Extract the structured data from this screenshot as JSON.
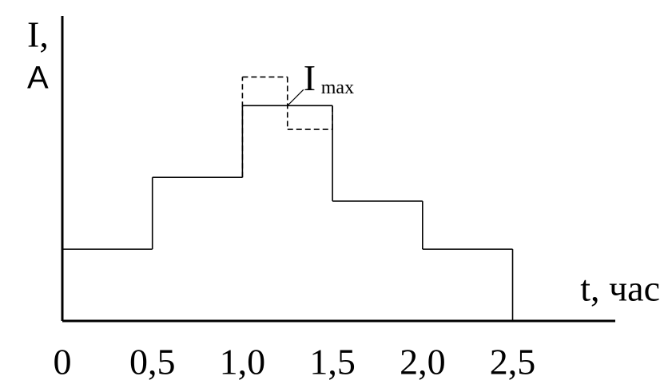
{
  "chart_data": {
    "type": "step",
    "xlabel": "t, час",
    "ylabel": [
      "I,",
      "A"
    ],
    "xlim": [
      0,
      3.07
    ],
    "ylim": [
      0,
      4.25
    ],
    "xticks": [
      0,
      {
        "value": 0.5,
        "label": "0,5"
      },
      {
        "value": 1,
        "label": "1,0"
      },
      {
        "value": 1.5,
        "label": "1,5"
      },
      {
        "value": 2,
        "label": "2,0"
      },
      {
        "value": 2.5,
        "label": "2,5"
      }
    ],
    "series": [
      {
        "bins": [
          0,
          0.5,
          1,
          1.5,
          2,
          2.5
        ],
        "values": [
          1,
          2,
          3,
          1.67,
          1
        ],
        "color": "#000",
        "dashed": false
      },
      {
        "bins": [
          1,
          1.25,
          1.5
        ],
        "values": [
          3.4,
          2.67
        ],
        "color": "#000",
        "dashed": true
      }
    ],
    "annotation": {
      "text": "I",
      "subscript": "max",
      "x": 1.25,
      "y": 3
    }
  }
}
